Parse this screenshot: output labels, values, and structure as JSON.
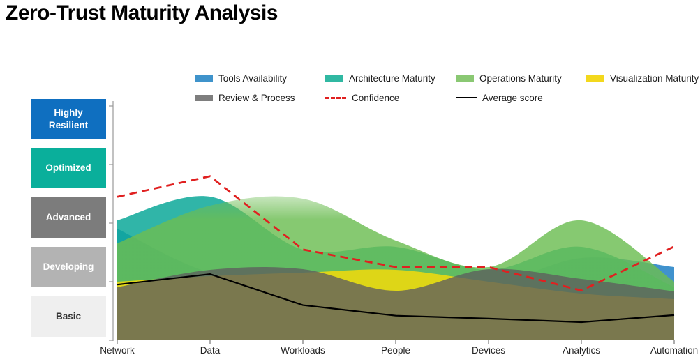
{
  "title": "Zero-Trust Maturity Analysis",
  "legend": {
    "items": [
      {
        "label": "Tools Availability",
        "swatch": "rect",
        "color": "#3f93cb"
      },
      {
        "label": "Architecture Maturity",
        "swatch": "rect",
        "color": "#30b8a2"
      },
      {
        "label": "Operations Maturity",
        "swatch": "rect",
        "color": "#8ac873"
      },
      {
        "label": "Visualization Maturity",
        "swatch": "rect",
        "color": "#f3d81d"
      },
      {
        "label": "Review & Process",
        "swatch": "rect",
        "color": "#7e7e7e"
      },
      {
        "label": "Confidence",
        "swatch": "dashes",
        "color": "#e02020"
      },
      {
        "label": "Average score",
        "swatch": "line",
        "color": "#000000"
      }
    ]
  },
  "maturity_levels": [
    {
      "label": "Highly Resilient",
      "color": "#0f6fc0",
      "text_color": "#ffffff"
    },
    {
      "label": "Optimized",
      "color": "#0aaf9b",
      "text_color": "#ffffff"
    },
    {
      "label": "Advanced",
      "color": "#7c7c7c",
      "text_color": "#ffffff"
    },
    {
      "label": "Developing",
      "color": "#b3b3b3",
      "text_color": "#ffffff"
    },
    {
      "label": "Basic",
      "color": "#efefef",
      "text_color": "#333333"
    }
  ],
  "chart_data": {
    "type": "area",
    "categories": [
      "Network",
      "Data",
      "Workloads",
      "People",
      "Devices",
      "Analytics",
      "Automation"
    ],
    "value_scale": {
      "min": 0,
      "max": 4,
      "unit": "maturity level (0 = baseline below Basic, 4 = Highly Resilient)"
    },
    "y_level_bands": [
      "Basic",
      "Developing",
      "Advanced",
      "Optimized",
      "Highly Resilient"
    ],
    "grid": false,
    "legend_position": "top",
    "series": [
      {
        "name": "Tools Availability",
        "kind": "area",
        "color": "#1f7fc4",
        "opacity": 0.85,
        "values": [
          1.9,
          1.15,
          1.05,
          0.75,
          0.9,
          1.4,
          1.25
        ]
      },
      {
        "name": "Architecture Maturity",
        "kind": "area",
        "color": "#0ca899",
        "opacity": 0.85,
        "values": [
          2.05,
          2.45,
          1.55,
          1.6,
          1.2,
          1.6,
          0.9
        ]
      },
      {
        "name": "Operations Maturity",
        "kind": "area",
        "color": "#6cbd52",
        "opacity": 0.82,
        "soft_top": true,
        "values": [
          1.65,
          2.3,
          2.42,
          1.7,
          1.25,
          2.05,
          1.0
        ]
      },
      {
        "name": "Visualization Maturity",
        "kind": "area",
        "color": "#ecd810",
        "opacity": 0.9,
        "values": [
          1.0,
          1.1,
          1.15,
          1.2,
          1.0,
          0.8,
          0.7
        ]
      },
      {
        "name": "Review & Process",
        "kind": "area",
        "color": "#5e5e5e",
        "opacity": 0.78,
        "values": [
          0.9,
          1.2,
          1.22,
          0.85,
          1.22,
          1.05,
          0.83
        ]
      },
      {
        "name": "Confidence",
        "kind": "line",
        "dashed": true,
        "color": "#e02020",
        "width": 2.8,
        "values": [
          2.45,
          2.8,
          1.55,
          1.25,
          1.25,
          0.85,
          1.6
        ]
      },
      {
        "name": "Average score",
        "kind": "line",
        "dashed": false,
        "color": "#000000",
        "width": 2.2,
        "values": [
          0.95,
          1.13,
          0.6,
          0.42,
          0.37,
          0.31,
          0.43
        ]
      }
    ]
  }
}
